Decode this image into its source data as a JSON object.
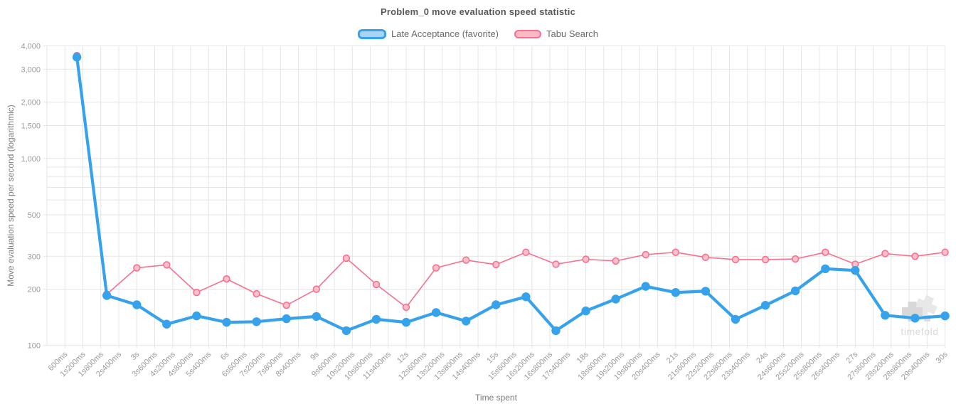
{
  "title": "Problem_0 move evaluation speed statistic",
  "legend": [
    {
      "label": "Late Acceptance (favorite)",
      "border_color": "#36A2EB",
      "fill_color": "#A9D3F2",
      "border_width": 3
    },
    {
      "label": "Tabu Search",
      "border_color": "#F8708E",
      "fill_color": "#FBB9C6",
      "border_width": 2
    }
  ],
  "watermark": {
    "text": "timefold",
    "logo_icon": "timefold-logo",
    "color": "#dadada"
  },
  "chart_data": {
    "type": "line",
    "title": "Problem_0 move evaluation speed statistic",
    "xlabel": "Time spent",
    "ylabel": "Move evaluation speed per second (logarithmic)",
    "y_scale": "log",
    "ylim": [
      100,
      4000
    ],
    "xlim_ms": [
      0,
      30000
    ],
    "grid": true,
    "legend_position": "top",
    "x_ms": [
      1000,
      2000,
      3000,
      4000,
      5000,
      6000,
      7000,
      8000,
      9000,
      10000,
      11000,
      12000,
      13000,
      14000,
      15000,
      16000,
      17000,
      18000,
      19000,
      20000,
      21000,
      22000,
      23000,
      24000,
      25000,
      26000,
      27000,
      28000,
      29000,
      30000
    ],
    "series": [
      {
        "name": "Late Acceptance (favorite)",
        "color": "#36A2EB",
        "point_fill": "#36A2EB",
        "line_width": 4.2,
        "point_radius": 5.4,
        "values": [
          3480,
          185,
          165,
          130,
          144,
          133,
          134,
          139,
          143,
          120,
          138,
          133,
          150,
          135,
          165,
          182,
          120,
          153,
          177,
          207,
          192,
          195,
          138,
          164,
          196,
          257,
          252,
          145,
          140,
          144
        ]
      },
      {
        "name": "Tabu Search",
        "color": "#F8708E",
        "point_fill": "#FBC0CC",
        "line_width": 1.6,
        "point_radius": 4.4,
        "values": [
          3550,
          188,
          260,
          270,
          192,
          227,
          189,
          164,
          200,
          293,
          212,
          160,
          260,
          286,
          271,
          315,
          272,
          289,
          283,
          306,
          315,
          296,
          288,
          288,
          290,
          315,
          272,
          310,
          300,
          315
        ]
      }
    ],
    "x_tick_interval_ms": 600,
    "x_tick_labels": [
      "600ms",
      "1s200ms",
      "1s800ms",
      "2s400ms",
      "3s",
      "3s600ms",
      "4s200ms",
      "4s800ms",
      "5s400ms",
      "6s",
      "6s600ms",
      "7s200ms",
      "7s800ms",
      "8s400ms",
      "9s",
      "9s600ms",
      "10s200ms",
      "10s800ms",
      "11s400ms",
      "12s",
      "12s600ms",
      "13s200ms",
      "13s800ms",
      "14s400ms",
      "15s",
      "15s600ms",
      "16s200ms",
      "16s800ms",
      "17s400ms",
      "18s",
      "18s600ms",
      "19s200ms",
      "19s800ms",
      "20s400ms",
      "21s",
      "21s600ms",
      "22s200ms",
      "22s800ms",
      "23s400ms",
      "24s",
      "24s600ms",
      "25s200ms",
      "25s800ms",
      "26s400ms",
      "27s",
      "27s600ms",
      "28s200ms",
      "28s800ms",
      "29s400ms",
      "30s"
    ],
    "y_grid_values": [
      100,
      200,
      300,
      400,
      500,
      600,
      700,
      800,
      900,
      1000,
      1500,
      2000,
      3000,
      4000
    ],
    "y_ticks": [
      {
        "value": 100,
        "label": "100"
      },
      {
        "value": 200,
        "label": "200"
      },
      {
        "value": 300,
        "label": "300"
      },
      {
        "value": 500,
        "label": "500"
      },
      {
        "value": 1000,
        "label": "1,000"
      },
      {
        "value": 1500,
        "label": "1,500"
      },
      {
        "value": 2000,
        "label": "2,000"
      },
      {
        "value": 3000,
        "label": "3,000"
      },
      {
        "value": 4000,
        "label": "4,000"
      }
    ]
  }
}
